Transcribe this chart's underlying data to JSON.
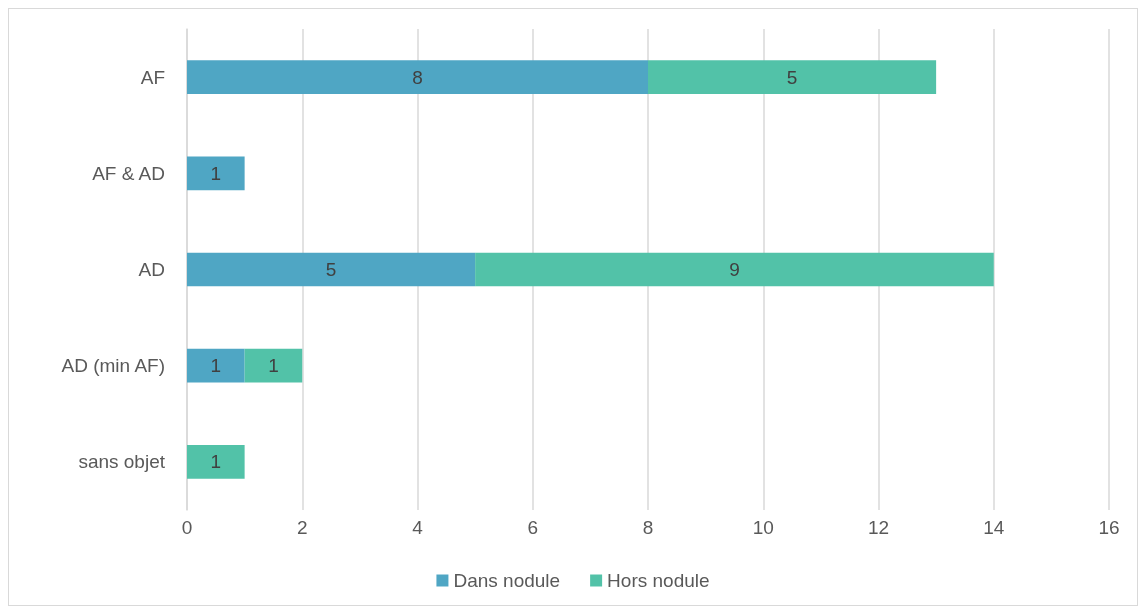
{
  "chart_data": {
    "type": "bar",
    "orientation": "horizontal",
    "stacked": true,
    "categories": [
      "AF",
      "AF & AD",
      "AD",
      "AD (min AF)",
      "sans objet"
    ],
    "series": [
      {
        "name": "Dans nodule",
        "color": "#4fa6c4",
        "values": [
          8,
          1,
          5,
          1,
          null
        ]
      },
      {
        "name": "Hors nodule",
        "color": "#52c2a8",
        "values": [
          5,
          null,
          9,
          1,
          1
        ]
      }
    ],
    "xlim": [
      0,
      16
    ],
    "xticks": [
      0,
      2,
      4,
      6,
      8,
      10,
      12,
      14,
      16
    ],
    "grid": "x",
    "legend": "bottom",
    "data_labels": true
  }
}
